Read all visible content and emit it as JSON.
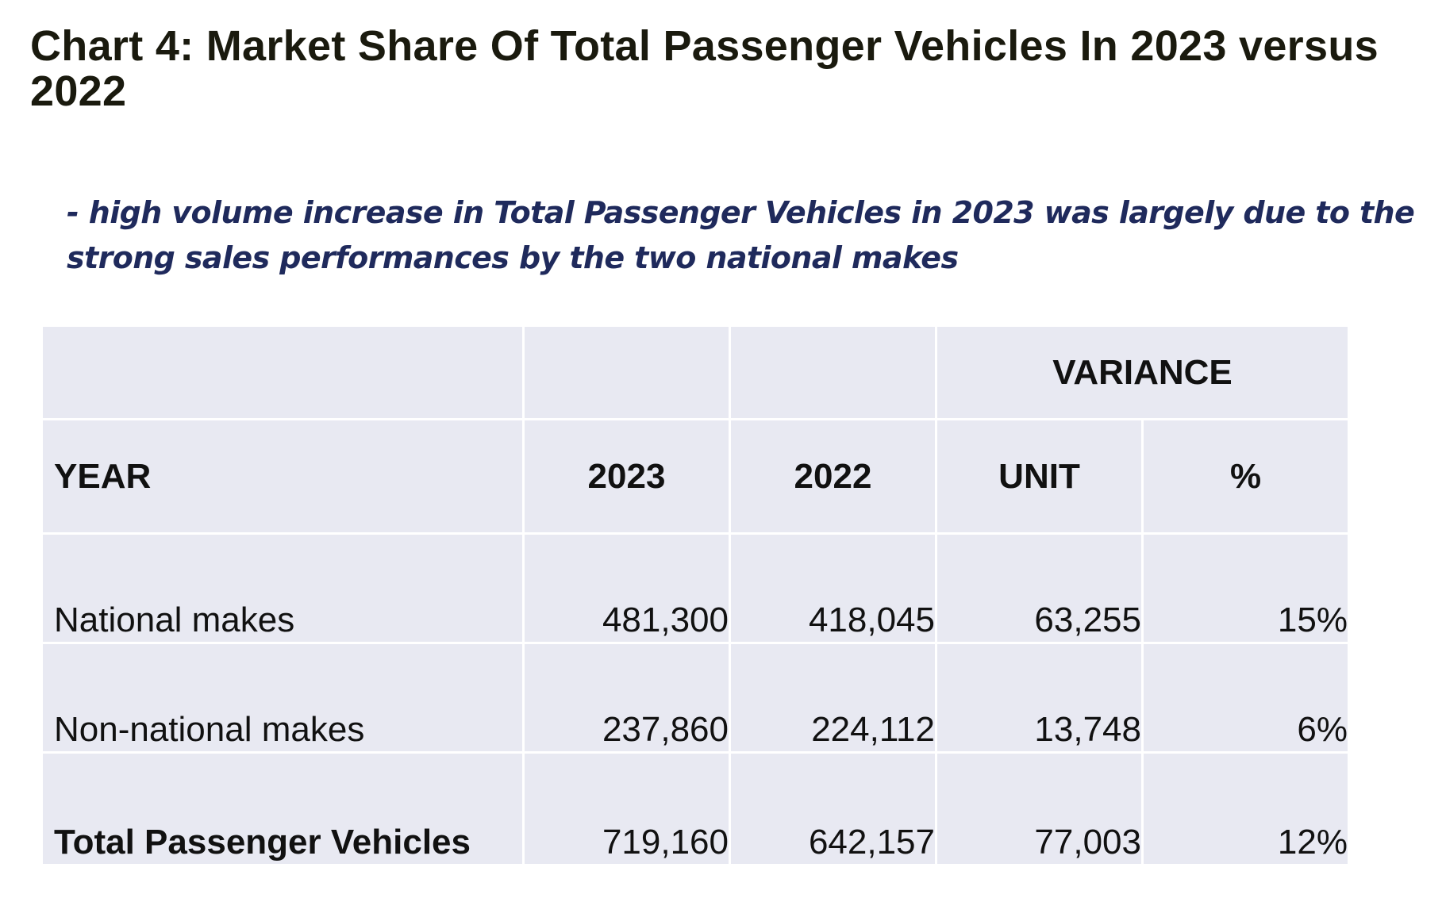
{
  "title": "Chart 4: Market Share Of Total Passenger Vehicles In 2023 versus 2022",
  "note": "- high volume increase in Total Passenger Vehicles in 2023 was largely due to the strong sales performances by the two national makes",
  "chart_data": {
    "type": "table",
    "group_header": "VARIANCE",
    "columns": [
      "YEAR",
      "2023",
      "2022",
      "UNIT",
      "%"
    ],
    "rows": [
      {
        "label": "National makes",
        "v2023": "481,300",
        "v2022": "418,045",
        "unit": "63,255",
        "pct": "15%"
      },
      {
        "label": "Non-national makes",
        "v2023": "237,860",
        "v2022": "224,112",
        "unit": "13,748",
        "pct": "6%"
      },
      {
        "label": "Total Passenger Vehicles",
        "v2023": "719,160",
        "v2022": "642,157",
        "unit": "77,003",
        "pct": "12%"
      }
    ]
  },
  "colors": {
    "title": "#1a1a0e",
    "note": "#1f2a5c",
    "cell_background": "#e8e9f2",
    "grid_lines": "#ffffff"
  }
}
